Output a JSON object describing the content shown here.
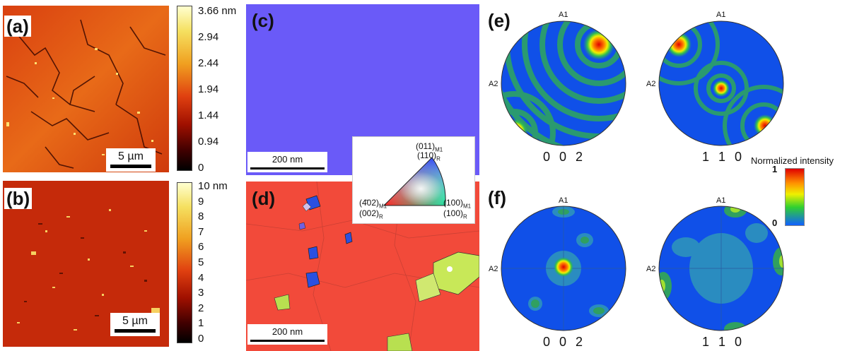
{
  "panels": {
    "a": {
      "label": "(a)",
      "scale": "5 µm"
    },
    "b": {
      "label": "(b)",
      "scale": "5 µm"
    },
    "c": {
      "label": "(c)",
      "scale": "200 nm"
    },
    "d": {
      "label": "(d)",
      "scale": "200 nm"
    },
    "e": {
      "label": "(e)"
    },
    "f": {
      "label": "(f)"
    }
  },
  "colorbar_a": {
    "ticks": [
      "3.66 nm",
      "2.94",
      "2.44",
      "1.94",
      "1.44",
      "0.94",
      "0"
    ],
    "colors": [
      "#ffffd0",
      "#f5e060",
      "#f0a020",
      "#e04010",
      "#a01000",
      "#400000",
      "#000000"
    ]
  },
  "colorbar_b": {
    "ticks": [
      "10 nm",
      "9",
      "8",
      "7",
      "6",
      "5",
      "4",
      "3",
      "2",
      "1",
      "0"
    ],
    "colors": [
      "#ffffd0",
      "#f5e060",
      "#f0a020",
      "#e04010",
      "#a01000",
      "#400000",
      "#000000"
    ]
  },
  "ipf_legend": {
    "top1": "(011)",
    "top1_sub": "M1",
    "top2": "(110)",
    "top2_sub": "R",
    "left1": "(4̄02)",
    "left1_sub": "M1",
    "left2": "(002)",
    "left2_sub": "R",
    "right1": "(100)",
    "right1_sub": "M1",
    "right2": "(100)",
    "right2_sub": "R"
  },
  "pole_figures": {
    "axis_top": "A1",
    "axis_left": "A2",
    "e_left_hkl": "0 0 2",
    "e_right_hkl": "1 1 0",
    "f_left_hkl": "0 0 2",
    "f_right_hkl": "1 1 0"
  },
  "intensity_bar": {
    "title": "Normalized intensity",
    "max": "1",
    "min": "0",
    "colors": [
      "#e00000",
      "#ff9000",
      "#f0f000",
      "#30d030",
      "#1060ff"
    ]
  }
}
